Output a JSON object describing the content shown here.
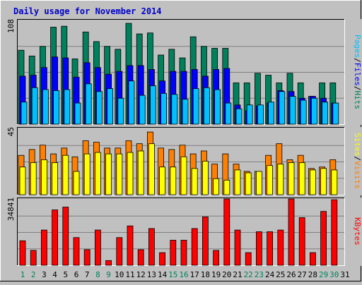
{
  "title": "Daily usage for November 2014",
  "colors": {
    "background": "#c0c0c0",
    "title": "#0000cc",
    "hits": "#00805c",
    "files": "#0000ff",
    "pages": "#00c0ff",
    "visits": "#ff8000",
    "sites": "#ffff00",
    "kbytes": "#ff0000",
    "weekend_day": "#00805c",
    "weekday": "#000000"
  },
  "chart_data": [
    {
      "type": "bar",
      "panel": "hits-files-pages",
      "y_max_label": "108",
      "ylim": [
        0,
        108
      ],
      "legend": [
        "Pages",
        "Files",
        "Hits"
      ],
      "legend_separator": "/",
      "categories": [
        "1",
        "2",
        "3",
        "4",
        "5",
        "6",
        "7",
        "8",
        "9",
        "10",
        "11",
        "12",
        "13",
        "14",
        "15",
        "16",
        "17",
        "18",
        "19",
        "20",
        "21",
        "22",
        "23",
        "24",
        "25",
        "26",
        "27",
        "28",
        "29",
        "30",
        "31"
      ],
      "series": [
        {
          "name": "Hits",
          "values": [
            77,
            71,
            81,
            101,
            102,
            68,
            96,
            86,
            81,
            78,
            105,
            94,
            95,
            72,
            78,
            69,
            91,
            81,
            79,
            79,
            43,
            43,
            53,
            51,
            43,
            53,
            43,
            29,
            43,
            43,
            0
          ]
        },
        {
          "name": "Files",
          "values": [
            50,
            51,
            59,
            70,
            69,
            49,
            64,
            59,
            52,
            55,
            61,
            61,
            57,
            45,
            55,
            55,
            57,
            50,
            57,
            58,
            20,
            14,
            19,
            22,
            35,
            34,
            27,
            29,
            27,
            22,
            0
          ]
        },
        {
          "name": "Pages",
          "values": [
            23,
            38,
            36,
            35,
            36,
            22,
            42,
            34,
            37,
            27,
            45,
            30,
            40,
            32,
            31,
            26,
            37,
            38,
            36,
            22,
            16,
            20,
            20,
            23,
            34,
            29,
            25,
            27,
            23,
            22,
            0
          ]
        }
      ]
    },
    {
      "type": "bar",
      "panel": "visits-sites",
      "y_max_label": "45",
      "ylim": [
        0,
        45
      ],
      "legend": [
        "Sites",
        "Visits"
      ],
      "legend_separator": "/",
      "categories": [
        "1",
        "2",
        "3",
        "4",
        "5",
        "6",
        "7",
        "8",
        "9",
        "10",
        "11",
        "12",
        "13",
        "14",
        "15",
        "16",
        "17",
        "18",
        "19",
        "20",
        "21",
        "22",
        "23",
        "24",
        "25",
        "26",
        "27",
        "28",
        "29",
        "30",
        "31"
      ],
      "series": [
        {
          "name": "Visits",
          "values": [
            27,
            31,
            34,
            28,
            32,
            26,
            37,
            36,
            32,
            32,
            37,
            35,
            43,
            32,
            31,
            34,
            28,
            30,
            21,
            28,
            21,
            16,
            16,
            27,
            35,
            24,
            27,
            18,
            19,
            24,
            0
          ]
        },
        {
          "name": "Sites",
          "values": [
            19,
            22,
            24,
            22,
            27,
            16,
            28,
            29,
            28,
            28,
            29,
            30,
            35,
            19,
            19,
            26,
            18,
            23,
            11,
            10,
            17,
            15,
            16,
            20,
            21,
            22,
            22,
            17,
            18,
            17,
            0
          ]
        }
      ]
    },
    {
      "type": "bar",
      "panel": "kbytes",
      "y_max_label": "34841",
      "ylim": [
        0,
        34841
      ],
      "legend": [
        "KBytes"
      ],
      "categories": [
        "1",
        "2",
        "3",
        "4",
        "5",
        "6",
        "7",
        "8",
        "9",
        "10",
        "11",
        "12",
        "13",
        "14",
        "15",
        "16",
        "17",
        "18",
        "19",
        "20",
        "21",
        "22",
        "23",
        "24",
        "25",
        "26",
        "27",
        "28",
        "29",
        "30",
        "31"
      ],
      "series": [
        {
          "name": "KBytes",
          "values": [
            13000,
            7900,
            18700,
            29400,
            30900,
            14700,
            8300,
            18700,
            2500,
            14700,
            20900,
            8300,
            19500,
            6700,
            13300,
            13300,
            19500,
            25700,
            7900,
            36400,
            18700,
            6700,
            17800,
            17800,
            18700,
            36400,
            25300,
            6700,
            28600,
            34800,
            0
          ]
        }
      ]
    }
  ],
  "x_axis": {
    "labels": [
      "1",
      "2",
      "3",
      "4",
      "5",
      "6",
      "7",
      "8",
      "9",
      "10",
      "11",
      "12",
      "13",
      "14",
      "15",
      "16",
      "17",
      "18",
      "19",
      "20",
      "21",
      "22",
      "23",
      "24",
      "25",
      "26",
      "27",
      "28",
      "29",
      "30",
      "31"
    ],
    "weekend_days": [
      1,
      2,
      8,
      9,
      15,
      16,
      22,
      23,
      29,
      30
    ]
  }
}
